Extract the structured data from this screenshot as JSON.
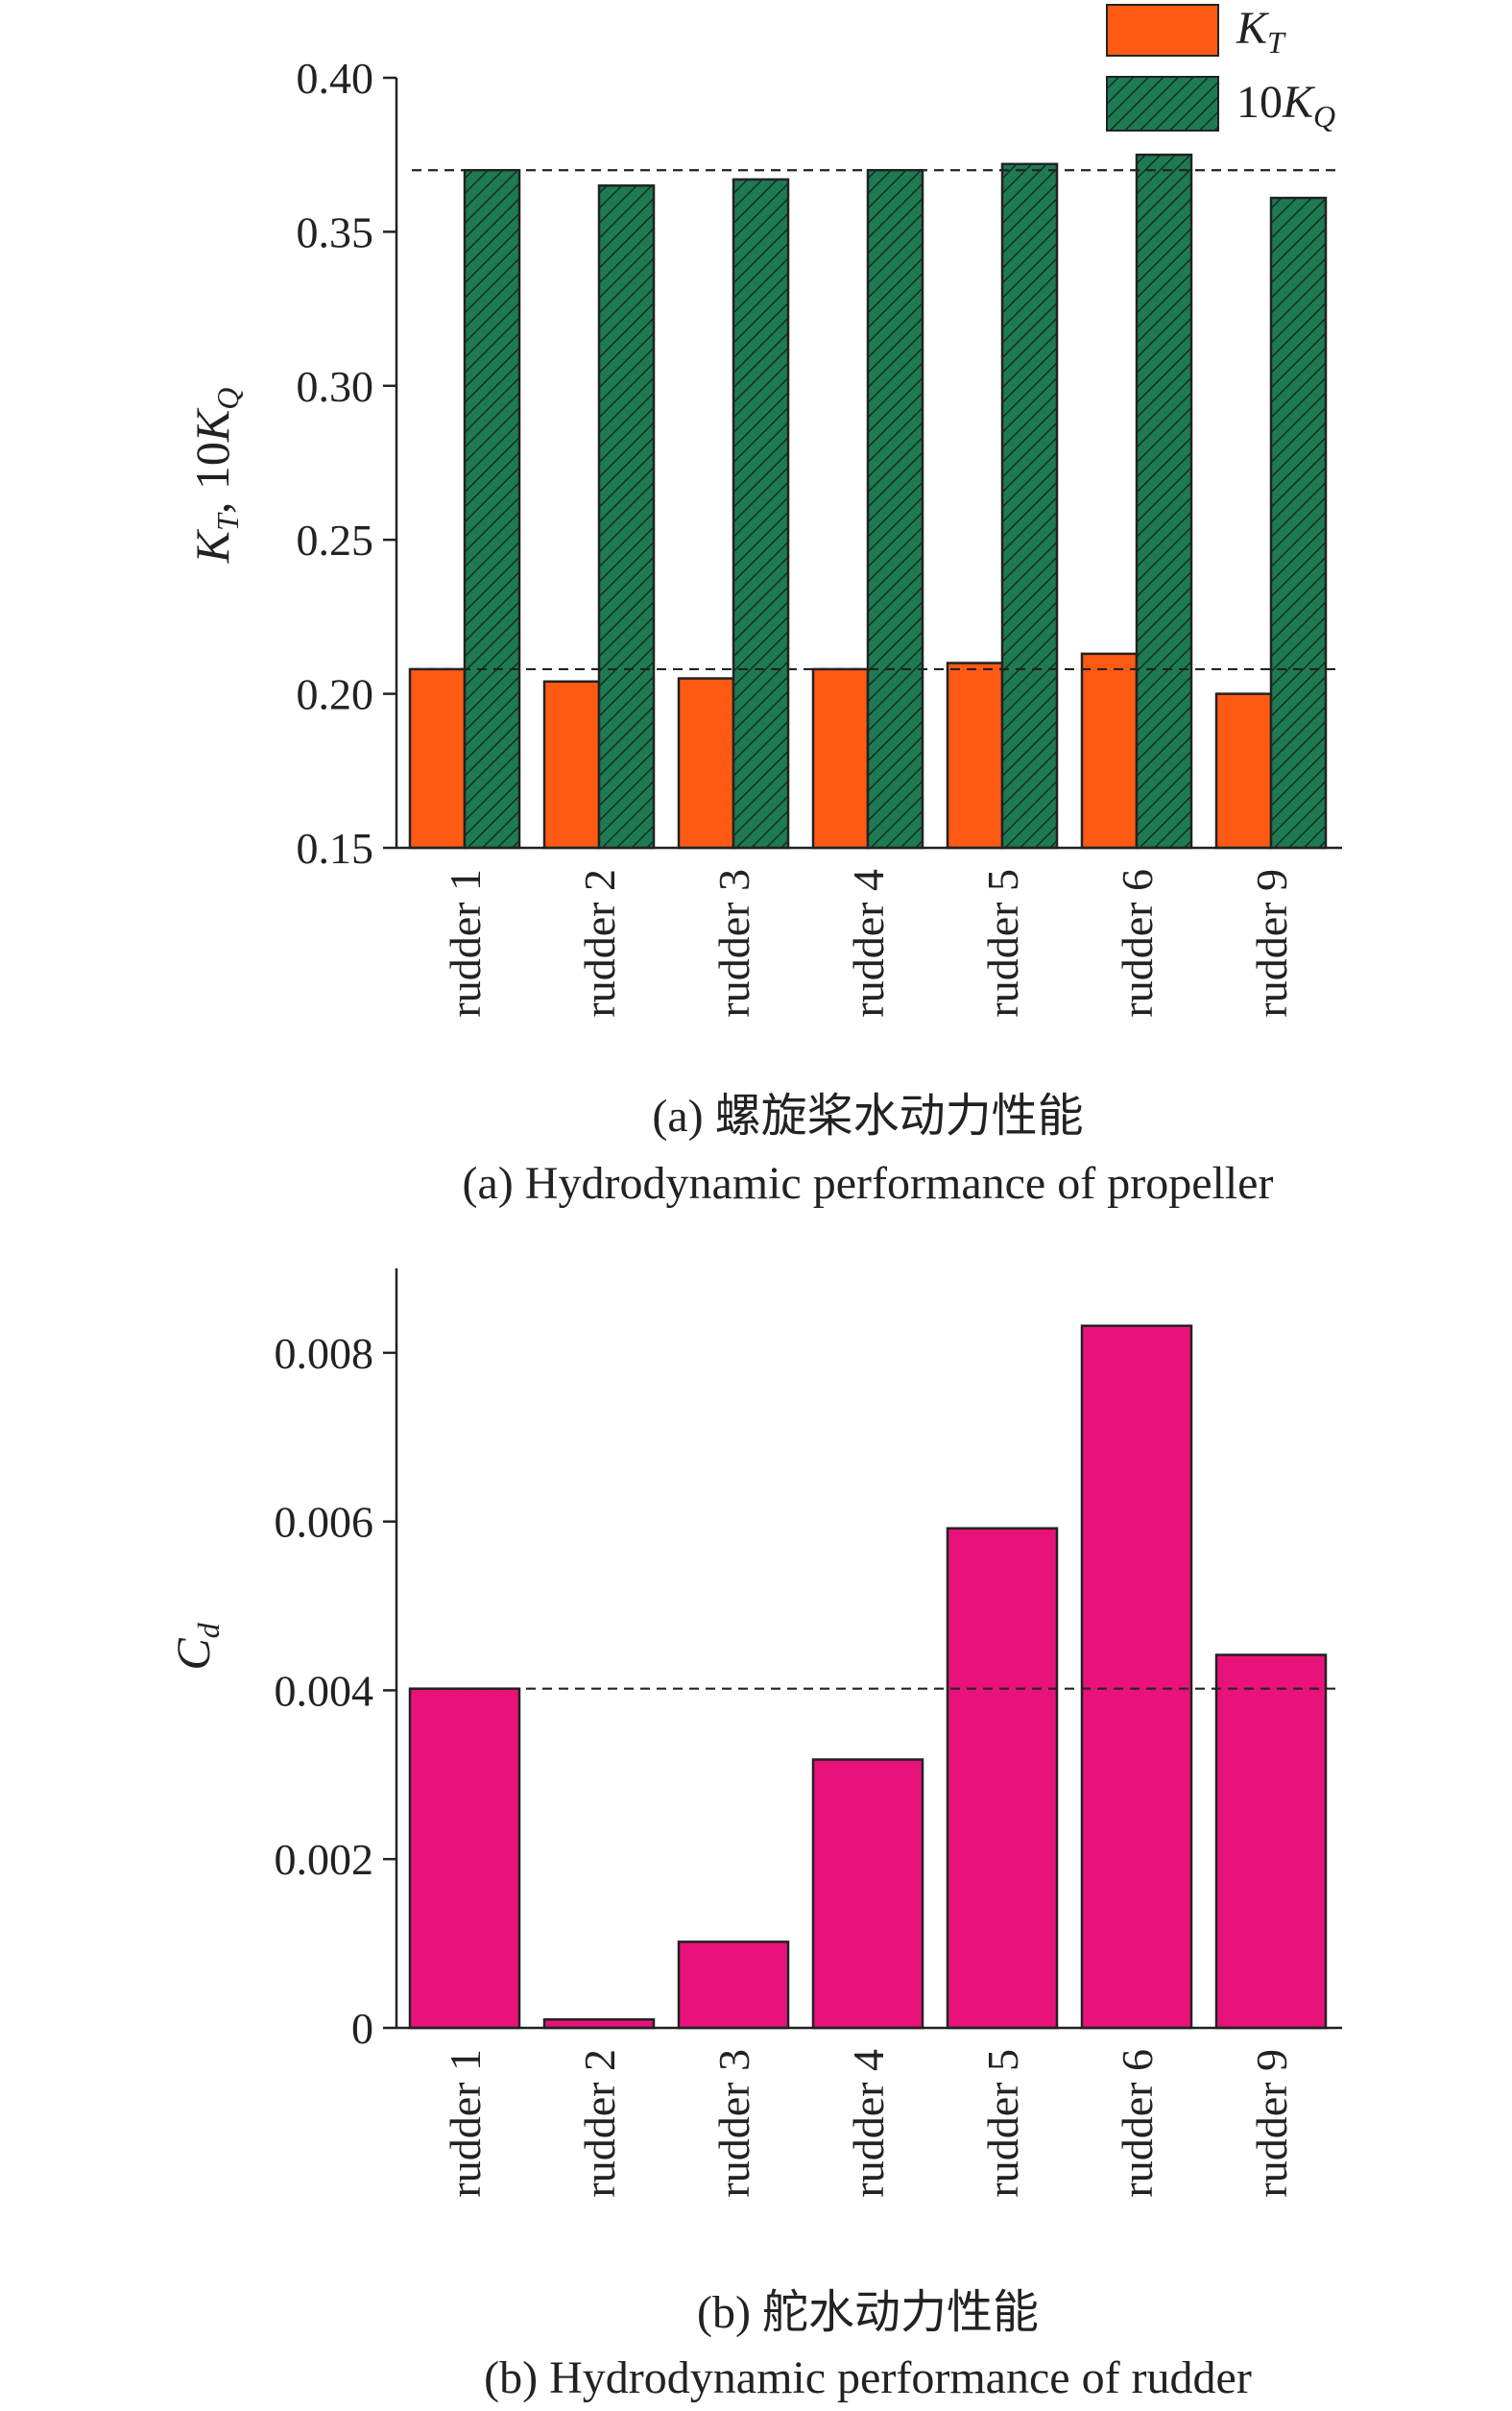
{
  "chart_data": [
    {
      "type": "bar",
      "categories": [
        "rudder 1",
        "rudder 2",
        "rudder 3",
        "rudder 4",
        "rudder 5",
        "rudder 6",
        "rudder 9"
      ],
      "series": [
        {
          "name": "K_T",
          "values": [
            0.208,
            0.204,
            0.205,
            0.208,
            0.21,
            0.213,
            0.2
          ],
          "color": "#ff5a14",
          "pattern": "solid"
        },
        {
          "name": "10K_Q",
          "values": [
            0.37,
            0.365,
            0.367,
            0.37,
            0.372,
            0.375,
            0.361
          ],
          "color": "#1e7a52",
          "pattern": "hatched"
        }
      ],
      "ylim": [
        0.15,
        0.4
      ],
      "yticks": [
        "0.15",
        "0.20",
        "0.25",
        "0.30",
        "0.35",
        "0.40"
      ],
      "ytick_values": [
        0.15,
        0.2,
        0.25,
        0.3,
        0.35,
        0.4
      ],
      "ylabel": "K_T, 10K_Q",
      "reference_lines": [
        0.37,
        0.208
      ],
      "legend_position": "top-right",
      "caption_cn": "(a) 螺旋桨水动力性能",
      "caption_en": "(a) Hydrodynamic performance of propeller"
    },
    {
      "type": "bar",
      "categories": [
        "rudder 1",
        "rudder 2",
        "rudder 3",
        "rudder 4",
        "rudder 5",
        "rudder 6",
        "rudder 9"
      ],
      "series": [
        {
          "values": [
            0.00402,
            0.0001,
            0.00102,
            0.00318,
            0.00592,
            0.00832,
            0.00442
          ],
          "color": "#e8127a"
        }
      ],
      "ylim": [
        0,
        0.009
      ],
      "yticks": [
        "0",
        "0.002",
        "0.004",
        "0.006",
        "0.008"
      ],
      "ytick_values": [
        0,
        0.002,
        0.004,
        0.006,
        0.008
      ],
      "ylabel": "C_d",
      "reference_lines": [
        0.00402
      ],
      "caption_cn": "(b) 舵水动力性能",
      "caption_en": "(b) Hydrodynamic performance of rudder"
    }
  ]
}
